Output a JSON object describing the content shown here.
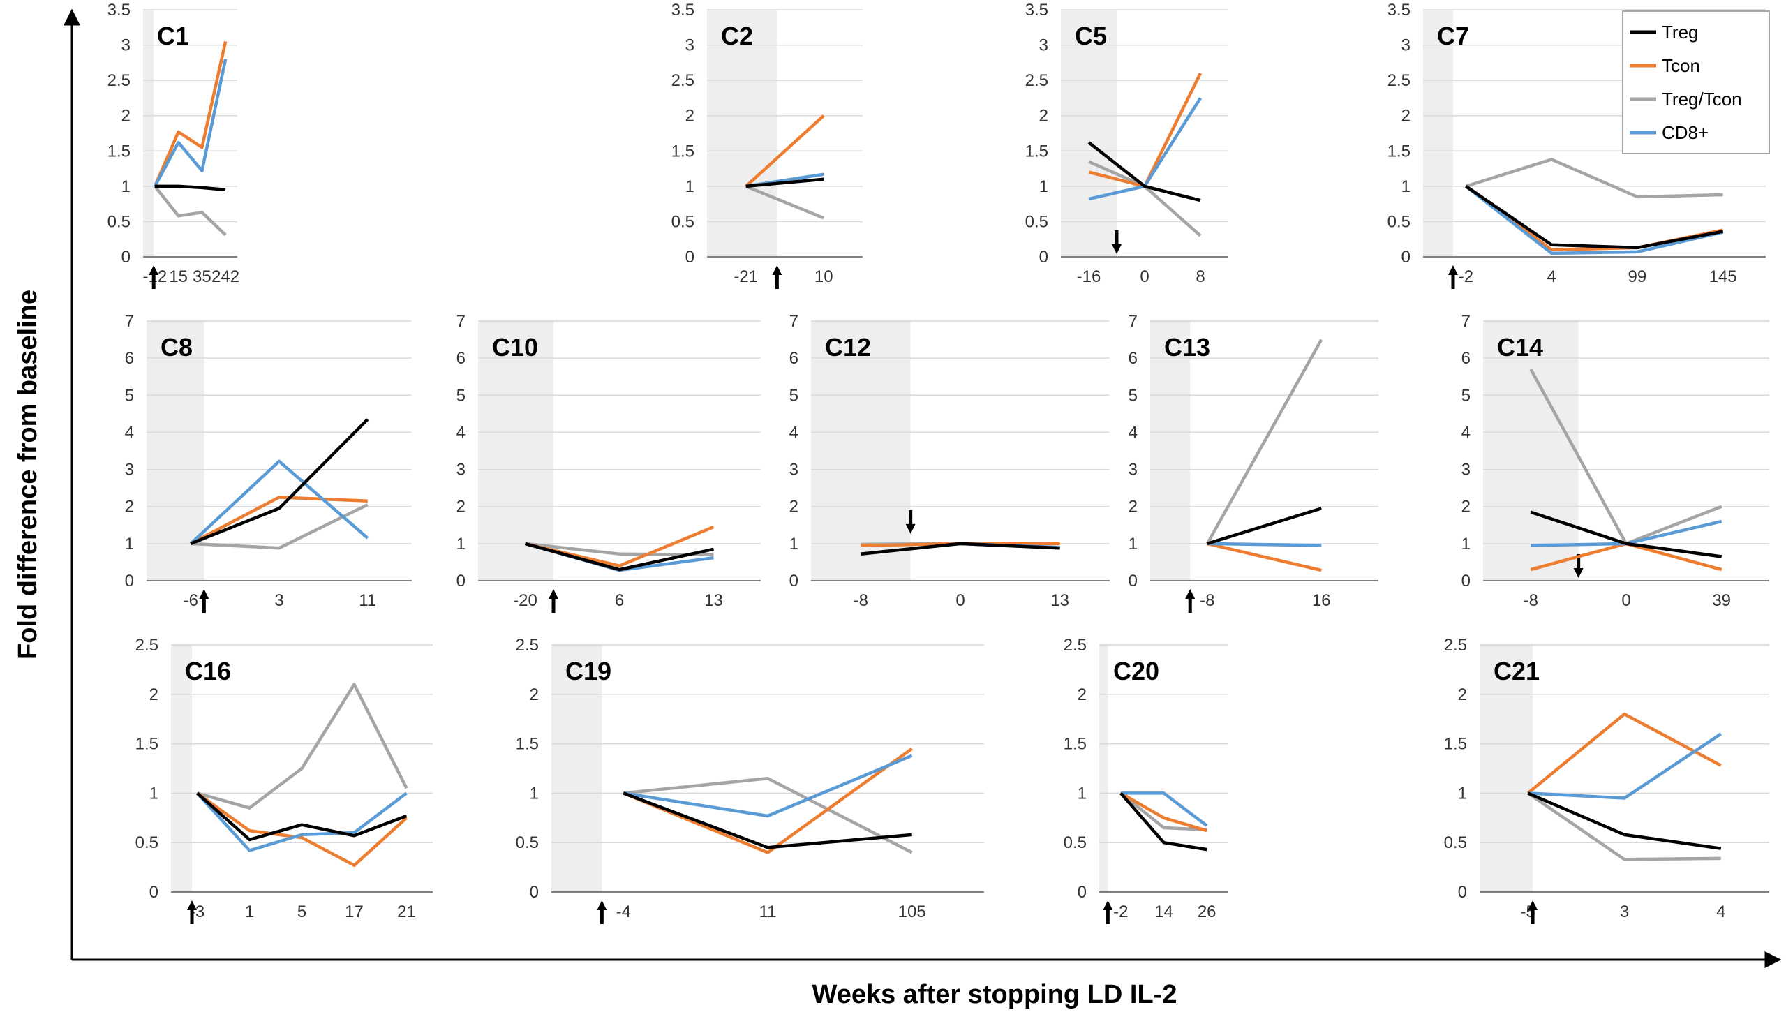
{
  "colors": {
    "Treg": "#000000",
    "Tcon": "#ED7D31",
    "Treg/Tcon": "#A5A5A5",
    "CD8+": "#5B9BD5",
    "shade": "#EEEEEE",
    "grid": "#D9D9D9"
  },
  "figure": {
    "xlabel": "Weeks after stopping LD IL-2",
    "ylabel": "Fold difference from baseline"
  },
  "legend": {
    "entries": [
      "Treg",
      "Tcon",
      "Treg/Tcon",
      "CD8+"
    ],
    "placement": "top-right"
  },
  "chart_data": [
    {
      "type": "line",
      "title": "C1",
      "ymax": 3.5,
      "yticks": [
        "0",
        "0.5",
        "1",
        "1.5",
        "2",
        "2.5",
        "3",
        "3.5"
      ],
      "categories": [
        "-12",
        "15",
        "35",
        "242"
      ],
      "shade_to": 0.45,
      "arrow": {
        "x": 0.45,
        "dir": "up"
      },
      "series": [
        {
          "name": "Treg",
          "values": [
            1.0,
            1.0,
            0.98,
            0.95
          ]
        },
        {
          "name": "Tcon",
          "values": [
            1.0,
            1.77,
            1.55,
            3.05
          ]
        },
        {
          "name": "Treg/Tcon",
          "values": [
            1.0,
            0.58,
            0.63,
            0.31
          ]
        },
        {
          "name": "CD8+",
          "values": [
            1.0,
            1.62,
            1.22,
            2.8
          ]
        }
      ]
    },
    {
      "type": "line",
      "title": "C2",
      "ymax": 3.5,
      "yticks": [
        "0",
        "0.5",
        "1",
        "1.5",
        "2",
        "2.5",
        "3",
        "3.5"
      ],
      "categories": [
        "-21",
        "10"
      ],
      "shade_to": 0.9,
      "arrow": {
        "x": 0.9,
        "dir": "up"
      },
      "series": [
        {
          "name": "Treg",
          "values": [
            1.0,
            1.1
          ]
        },
        {
          "name": "Tcon",
          "values": [
            1.0,
            2.0
          ]
        },
        {
          "name": "Treg/Tcon",
          "values": [
            1.0,
            0.55
          ]
        },
        {
          "name": "CD8+",
          "values": [
            1.0,
            1.17
          ]
        }
      ]
    },
    {
      "type": "line",
      "title": "C5",
      "ymax": 3.5,
      "yticks": [
        "0",
        "0.5",
        "1",
        "1.5",
        "2",
        "2.5",
        "3",
        "3.5"
      ],
      "categories": [
        "-16",
        "0",
        "8"
      ],
      "shade_to": 1.0,
      "arrow": {
        "x": 1.0,
        "dir": "down"
      },
      "series": [
        {
          "name": "Treg",
          "values": [
            1.62,
            1.0,
            0.8
          ]
        },
        {
          "name": "Tcon",
          "values": [
            1.2,
            1.0,
            2.6
          ]
        },
        {
          "name": "Treg/Tcon",
          "values": [
            1.35,
            1.0,
            0.3
          ]
        },
        {
          "name": "CD8+",
          "values": [
            0.82,
            1.0,
            2.25
          ]
        }
      ]
    },
    {
      "type": "line",
      "title": "C7",
      "ymax": 3.5,
      "yticks": [
        "0",
        "0.5",
        "1",
        "1.5",
        "2",
        "2.5",
        "3",
        "3.5"
      ],
      "categories": [
        "-2",
        "4",
        "99",
        "145"
      ],
      "shade_to": 0.35,
      "arrow": {
        "x": 0.35,
        "dir": "up"
      },
      "legend": true,
      "series": [
        {
          "name": "Treg",
          "values": [
            1.0,
            0.17,
            0.13,
            0.36
          ]
        },
        {
          "name": "Tcon",
          "values": [
            1.0,
            0.1,
            0.13,
            0.38
          ]
        },
        {
          "name": "Treg/Tcon",
          "values": [
            1.0,
            1.38,
            0.85,
            0.88
          ]
        },
        {
          "name": "CD8+",
          "values": [
            1.0,
            0.05,
            0.07,
            0.35
          ]
        }
      ]
    },
    {
      "type": "line",
      "title": "C8",
      "ymax": 7,
      "yticks": [
        "0",
        "1",
        "2",
        "3",
        "4",
        "5",
        "6",
        "7"
      ],
      "categories": [
        "-6",
        "3",
        "11"
      ],
      "shade_to": 0.65,
      "arrow": {
        "x": 0.65,
        "dir": "up"
      },
      "series": [
        {
          "name": "Treg",
          "values": [
            1.0,
            1.95,
            4.35
          ]
        },
        {
          "name": "Tcon",
          "values": [
            1.0,
            2.25,
            2.15
          ]
        },
        {
          "name": "Treg/Tcon",
          "values": [
            1.0,
            0.88,
            2.05
          ]
        },
        {
          "name": "CD8+",
          "values": [
            1.0,
            3.22,
            1.15
          ]
        }
      ]
    },
    {
      "type": "line",
      "title": "C10",
      "ymax": 7,
      "yticks": [
        "0",
        "1",
        "2",
        "3",
        "4",
        "5",
        "6",
        "7"
      ],
      "categories": [
        "-20",
        "6",
        "13"
      ],
      "shade_to": 0.8,
      "arrow": {
        "x": 0.8,
        "dir": "up"
      },
      "series": [
        {
          "name": "Treg",
          "values": [
            1.0,
            0.3,
            0.85
          ]
        },
        {
          "name": "Tcon",
          "values": [
            1.0,
            0.4,
            1.45
          ]
        },
        {
          "name": "Treg/Tcon",
          "values": [
            1.0,
            0.72,
            0.7
          ]
        },
        {
          "name": "CD8+",
          "values": [
            1.0,
            0.28,
            0.62
          ]
        }
      ]
    },
    {
      "type": "line",
      "title": "C12",
      "ymax": 7,
      "yticks": [
        "0",
        "1",
        "2",
        "3",
        "4",
        "5",
        "6",
        "7"
      ],
      "categories": [
        "-8",
        "0",
        "13"
      ],
      "shade_to": 1.0,
      "arrow": {
        "x": 1.0,
        "dir": "down-above"
      },
      "series": [
        {
          "name": "Treg",
          "values": [
            0.72,
            1.0,
            0.88
          ]
        },
        {
          "name": "Tcon",
          "values": [
            0.95,
            1.0,
            1.0
          ]
        },
        {
          "name": "Treg/Tcon",
          "values": [
            0.98,
            1.0,
            0.88
          ]
        },
        {
          "name": "CD8+",
          "values": [
            0.72,
            1.0,
            0.9
          ]
        }
      ]
    },
    {
      "type": "line",
      "title": "C13",
      "ymax": 7,
      "yticks": [
        "0",
        "1",
        "2",
        "3",
        "4",
        "5",
        "6",
        "7"
      ],
      "categories": [
        "-8",
        "16"
      ],
      "shade_to": 0.35,
      "arrow": {
        "x": 0.35,
        "dir": "up"
      },
      "series": [
        {
          "name": "Treg",
          "values": [
            1.0,
            1.95
          ]
        },
        {
          "name": "Tcon",
          "values": [
            1.0,
            0.28
          ]
        },
        {
          "name": "Treg/Tcon",
          "values": [
            1.0,
            6.5
          ]
        },
        {
          "name": "CD8+",
          "values": [
            1.0,
            0.95
          ]
        }
      ]
    },
    {
      "type": "line",
      "title": "C14",
      "ymax": 7,
      "yticks": [
        "0",
        "1",
        "2",
        "3",
        "4",
        "5",
        "6",
        "7"
      ],
      "categories": [
        "-8",
        "0",
        "39"
      ],
      "shade_to": 1.0,
      "arrow": {
        "x": 1.0,
        "dir": "down"
      },
      "series": [
        {
          "name": "Treg",
          "values": [
            1.85,
            1.0,
            0.65
          ]
        },
        {
          "name": "Tcon",
          "values": [
            0.3,
            1.0,
            0.3
          ]
        },
        {
          "name": "Treg/Tcon",
          "values": [
            5.7,
            1.0,
            2.0
          ]
        },
        {
          "name": "CD8+",
          "values": [
            0.95,
            1.0,
            1.6
          ]
        }
      ]
    },
    {
      "type": "line",
      "title": "C16",
      "ymax": 2.5,
      "yticks": [
        "0",
        "0.5",
        "1",
        "1.5",
        "2",
        "2.5"
      ],
      "categories": [
        "-3",
        "1",
        "5",
        "17",
        "21"
      ],
      "shade_to": 0.4,
      "arrow": {
        "x": 0.4,
        "dir": "up"
      },
      "series": [
        {
          "name": "Treg",
          "values": [
            1.0,
            0.53,
            0.68,
            0.57,
            0.77
          ]
        },
        {
          "name": "Tcon",
          "values": [
            1.0,
            0.62,
            0.55,
            0.27,
            0.75
          ]
        },
        {
          "name": "Treg/Tcon",
          "values": [
            1.0,
            0.85,
            1.25,
            2.1,
            1.05
          ]
        },
        {
          "name": "CD8+",
          "values": [
            1.0,
            0.42,
            0.58,
            0.6,
            1.0
          ]
        }
      ]
    },
    {
      "type": "line",
      "title": "C19",
      "ymax": 2.5,
      "yticks": [
        "0",
        "0.5",
        "1",
        "1.5",
        "2",
        "2.5"
      ],
      "categories": [
        "-4",
        "11",
        "105"
      ],
      "shade_to": 0.35,
      "arrow": {
        "x": 0.35,
        "dir": "up"
      },
      "series": [
        {
          "name": "Treg",
          "values": [
            1.0,
            0.45,
            0.58
          ]
        },
        {
          "name": "Tcon",
          "values": [
            1.0,
            0.4,
            1.45
          ]
        },
        {
          "name": "Treg/Tcon",
          "values": [
            1.0,
            1.15,
            0.4
          ]
        },
        {
          "name": "CD8+",
          "values": [
            1.0,
            0.77,
            1.38
          ]
        }
      ]
    },
    {
      "type": "line",
      "title": "C20",
      "ymax": 2.5,
      "yticks": [
        "0",
        "0.5",
        "1",
        "1.5",
        "2",
        "2.5"
      ],
      "categories": [
        "-2",
        "14",
        "26"
      ],
      "shade_to": 0.2,
      "arrow": {
        "x": 0.2,
        "dir": "up"
      },
      "series": [
        {
          "name": "Treg",
          "values": [
            1.0,
            0.5,
            0.43
          ]
        },
        {
          "name": "Tcon",
          "values": [
            1.0,
            0.75,
            0.62
          ]
        },
        {
          "name": "Treg/Tcon",
          "values": [
            1.0,
            0.65,
            0.63
          ]
        },
        {
          "name": "CD8+",
          "values": [
            1.0,
            1.0,
            0.67
          ]
        }
      ]
    },
    {
      "type": "line",
      "title": "C21",
      "ymax": 2.5,
      "yticks": [
        "0",
        "0.5",
        "1",
        "1.5",
        "2",
        "2.5"
      ],
      "categories": [
        "-5",
        "3",
        "4"
      ],
      "shade_to": 0.55,
      "arrow": {
        "x": 0.55,
        "dir": "up"
      },
      "series": [
        {
          "name": "Treg",
          "values": [
            1.0,
            0.58,
            0.44
          ]
        },
        {
          "name": "Tcon",
          "values": [
            1.0,
            1.8,
            1.28
          ]
        },
        {
          "name": "Treg/Tcon",
          "values": [
            1.0,
            0.33,
            0.34
          ]
        },
        {
          "name": "CD8+",
          "values": [
            1.0,
            0.95,
            1.6
          ]
        }
      ]
    }
  ]
}
